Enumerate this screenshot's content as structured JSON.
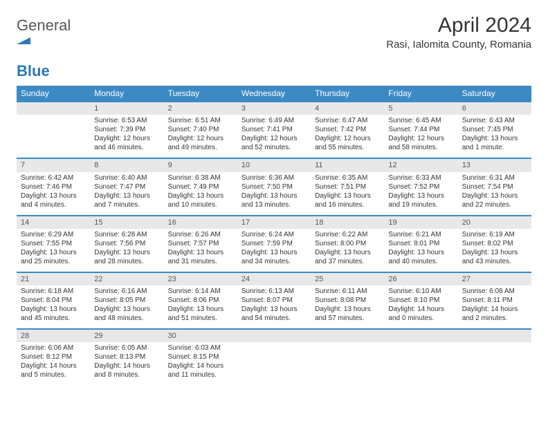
{
  "logo": {
    "word1": "General",
    "word2": "Blue"
  },
  "title": "April 2024",
  "location": "Rasi, Ialomita County, Romania",
  "weekdays": [
    "Sunday",
    "Monday",
    "Tuesday",
    "Wednesday",
    "Thursday",
    "Friday",
    "Saturday"
  ],
  "colors": {
    "header_bg": "#3b8ac4",
    "header_fg": "#ffffff",
    "daynum_bg": "#e8e8e8",
    "rule": "#3b8ac4",
    "logo_blue": "#2a7ab8"
  },
  "weeks": [
    [
      null,
      {
        "n": "1",
        "sunrise": "Sunrise: 6:53 AM",
        "sunset": "Sunset: 7:39 PM",
        "day1": "Daylight: 12 hours",
        "day2": "and 46 minutes."
      },
      {
        "n": "2",
        "sunrise": "Sunrise: 6:51 AM",
        "sunset": "Sunset: 7:40 PM",
        "day1": "Daylight: 12 hours",
        "day2": "and 49 minutes."
      },
      {
        "n": "3",
        "sunrise": "Sunrise: 6:49 AM",
        "sunset": "Sunset: 7:41 PM",
        "day1": "Daylight: 12 hours",
        "day2": "and 52 minutes."
      },
      {
        "n": "4",
        "sunrise": "Sunrise: 6:47 AM",
        "sunset": "Sunset: 7:42 PM",
        "day1": "Daylight: 12 hours",
        "day2": "and 55 minutes."
      },
      {
        "n": "5",
        "sunrise": "Sunrise: 6:45 AM",
        "sunset": "Sunset: 7:44 PM",
        "day1": "Daylight: 12 hours",
        "day2": "and 58 minutes."
      },
      {
        "n": "6",
        "sunrise": "Sunrise: 6:43 AM",
        "sunset": "Sunset: 7:45 PM",
        "day1": "Daylight: 13 hours",
        "day2": "and 1 minute."
      }
    ],
    [
      {
        "n": "7",
        "sunrise": "Sunrise: 6:42 AM",
        "sunset": "Sunset: 7:46 PM",
        "day1": "Daylight: 13 hours",
        "day2": "and 4 minutes."
      },
      {
        "n": "8",
        "sunrise": "Sunrise: 6:40 AM",
        "sunset": "Sunset: 7:47 PM",
        "day1": "Daylight: 13 hours",
        "day2": "and 7 minutes."
      },
      {
        "n": "9",
        "sunrise": "Sunrise: 6:38 AM",
        "sunset": "Sunset: 7:49 PM",
        "day1": "Daylight: 13 hours",
        "day2": "and 10 minutes."
      },
      {
        "n": "10",
        "sunrise": "Sunrise: 6:36 AM",
        "sunset": "Sunset: 7:50 PM",
        "day1": "Daylight: 13 hours",
        "day2": "and 13 minutes."
      },
      {
        "n": "11",
        "sunrise": "Sunrise: 6:35 AM",
        "sunset": "Sunset: 7:51 PM",
        "day1": "Daylight: 13 hours",
        "day2": "and 16 minutes."
      },
      {
        "n": "12",
        "sunrise": "Sunrise: 6:33 AM",
        "sunset": "Sunset: 7:52 PM",
        "day1": "Daylight: 13 hours",
        "day2": "and 19 minutes."
      },
      {
        "n": "13",
        "sunrise": "Sunrise: 6:31 AM",
        "sunset": "Sunset: 7:54 PM",
        "day1": "Daylight: 13 hours",
        "day2": "and 22 minutes."
      }
    ],
    [
      {
        "n": "14",
        "sunrise": "Sunrise: 6:29 AM",
        "sunset": "Sunset: 7:55 PM",
        "day1": "Daylight: 13 hours",
        "day2": "and 25 minutes."
      },
      {
        "n": "15",
        "sunrise": "Sunrise: 6:28 AM",
        "sunset": "Sunset: 7:56 PM",
        "day1": "Daylight: 13 hours",
        "day2": "and 28 minutes."
      },
      {
        "n": "16",
        "sunrise": "Sunrise: 6:26 AM",
        "sunset": "Sunset: 7:57 PM",
        "day1": "Daylight: 13 hours",
        "day2": "and 31 minutes."
      },
      {
        "n": "17",
        "sunrise": "Sunrise: 6:24 AM",
        "sunset": "Sunset: 7:59 PM",
        "day1": "Daylight: 13 hours",
        "day2": "and 34 minutes."
      },
      {
        "n": "18",
        "sunrise": "Sunrise: 6:22 AM",
        "sunset": "Sunset: 8:00 PM",
        "day1": "Daylight: 13 hours",
        "day2": "and 37 minutes."
      },
      {
        "n": "19",
        "sunrise": "Sunrise: 6:21 AM",
        "sunset": "Sunset: 8:01 PM",
        "day1": "Daylight: 13 hours",
        "day2": "and 40 minutes."
      },
      {
        "n": "20",
        "sunrise": "Sunrise: 6:19 AM",
        "sunset": "Sunset: 8:02 PM",
        "day1": "Daylight: 13 hours",
        "day2": "and 43 minutes."
      }
    ],
    [
      {
        "n": "21",
        "sunrise": "Sunrise: 6:18 AM",
        "sunset": "Sunset: 8:04 PM",
        "day1": "Daylight: 13 hours",
        "day2": "and 45 minutes."
      },
      {
        "n": "22",
        "sunrise": "Sunrise: 6:16 AM",
        "sunset": "Sunset: 8:05 PM",
        "day1": "Daylight: 13 hours",
        "day2": "and 48 minutes."
      },
      {
        "n": "23",
        "sunrise": "Sunrise: 6:14 AM",
        "sunset": "Sunset: 8:06 PM",
        "day1": "Daylight: 13 hours",
        "day2": "and 51 minutes."
      },
      {
        "n": "24",
        "sunrise": "Sunrise: 6:13 AM",
        "sunset": "Sunset: 8:07 PM",
        "day1": "Daylight: 13 hours",
        "day2": "and 54 minutes."
      },
      {
        "n": "25",
        "sunrise": "Sunrise: 6:11 AM",
        "sunset": "Sunset: 8:08 PM",
        "day1": "Daylight: 13 hours",
        "day2": "and 57 minutes."
      },
      {
        "n": "26",
        "sunrise": "Sunrise: 6:10 AM",
        "sunset": "Sunset: 8:10 PM",
        "day1": "Daylight: 14 hours",
        "day2": "and 0 minutes."
      },
      {
        "n": "27",
        "sunrise": "Sunrise: 6:08 AM",
        "sunset": "Sunset: 8:11 PM",
        "day1": "Daylight: 14 hours",
        "day2": "and 2 minutes."
      }
    ],
    [
      {
        "n": "28",
        "sunrise": "Sunrise: 6:06 AM",
        "sunset": "Sunset: 8:12 PM",
        "day1": "Daylight: 14 hours",
        "day2": "and 5 minutes."
      },
      {
        "n": "29",
        "sunrise": "Sunrise: 6:05 AM",
        "sunset": "Sunset: 8:13 PM",
        "day1": "Daylight: 14 hours",
        "day2": "and 8 minutes."
      },
      {
        "n": "30",
        "sunrise": "Sunrise: 6:03 AM",
        "sunset": "Sunset: 8:15 PM",
        "day1": "Daylight: 14 hours",
        "day2": "and 11 minutes."
      },
      null,
      null,
      null,
      null
    ]
  ]
}
